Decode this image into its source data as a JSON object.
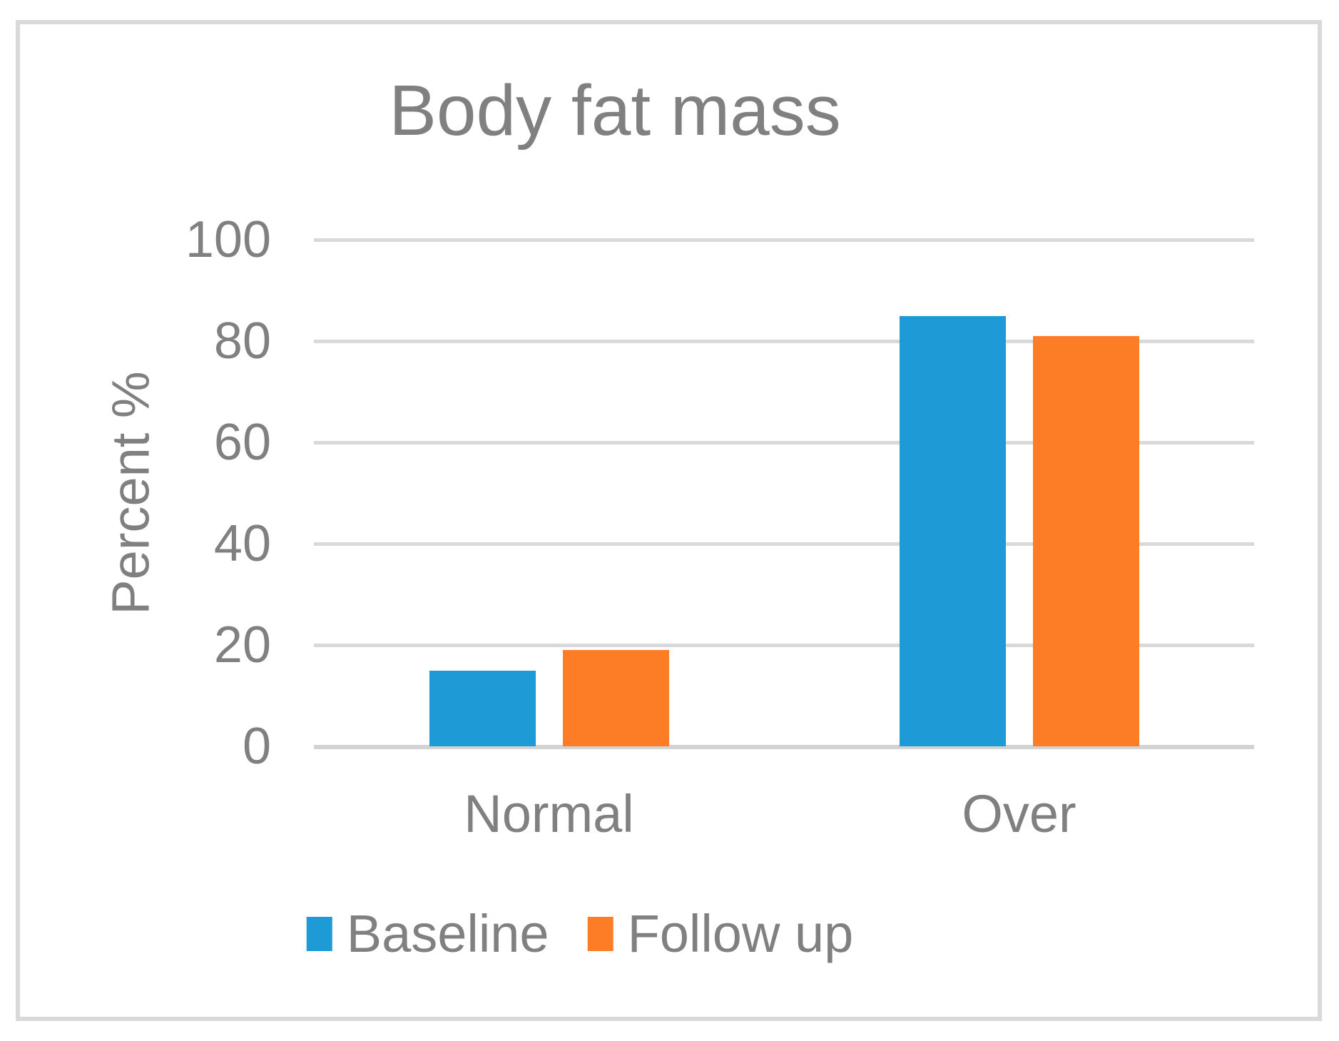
{
  "chart": {
    "title": "Body fat mass",
    "y_axis_title": "Percent %"
  },
  "chart_data": {
    "type": "bar",
    "title": "Body fat mass",
    "xlabel": "",
    "ylabel": "Percent %",
    "categories": [
      "Normal",
      "Over"
    ],
    "series": [
      {
        "name": "Baseline",
        "color": "#1e9ad6",
        "values": [
          15,
          85
        ]
      },
      {
        "name": "Follow up",
        "color": "#fc7d26",
        "values": [
          19,
          81
        ]
      }
    ],
    "ylim": [
      0,
      100
    ],
    "yticks": [
      0,
      20,
      40,
      60,
      80,
      100
    ],
    "grid": true,
    "legend_position": "bottom",
    "colors": {
      "text": "#808080",
      "gridline": "#d9d9d9",
      "axis_line": "#d3d3d3",
      "frame_border": "#d9d9d9",
      "background": "#ffffff"
    }
  }
}
